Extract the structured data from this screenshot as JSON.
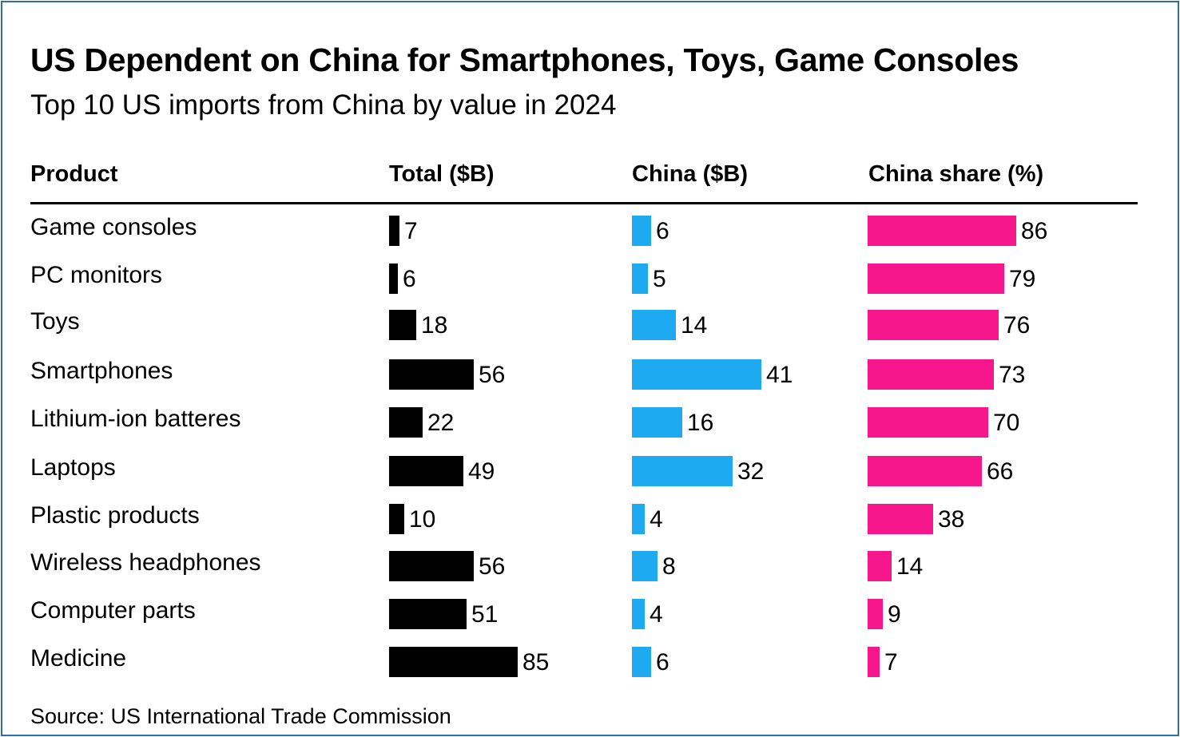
{
  "title": "US Dependent on China for Smartphones, Toys, Game Consoles",
  "subtitle": "Top 10 US imports from China by value in 2024",
  "source": "Source: US International Trade Commission",
  "colors": {
    "total": "#000000",
    "china": "#1eaaf1",
    "share": "#f7168c"
  },
  "chart_data": {
    "type": "bar",
    "columns": [
      "Product",
      "Total ($B)",
      "China ($B)",
      "China share (%)"
    ],
    "categories": [
      "Game consoles",
      "PC monitors",
      "Toys",
      "Smartphones",
      "Lithium-ion batteres",
      "Laptops",
      "Plastic products",
      "Wireless headphones",
      "Computer parts",
      "Medicine"
    ],
    "series": [
      {
        "name": "Total ($B)",
        "values": [
          7,
          6,
          18,
          56,
          22,
          49,
          10,
          56,
          51,
          85
        ]
      },
      {
        "name": "China ($B)",
        "values": [
          6,
          5,
          14,
          41,
          16,
          32,
          4,
          8,
          4,
          6
        ]
      },
      {
        "name": "China share (%)",
        "values": [
          86,
          79,
          76,
          73,
          70,
          66,
          38,
          14,
          9,
          7
        ]
      }
    ]
  }
}
